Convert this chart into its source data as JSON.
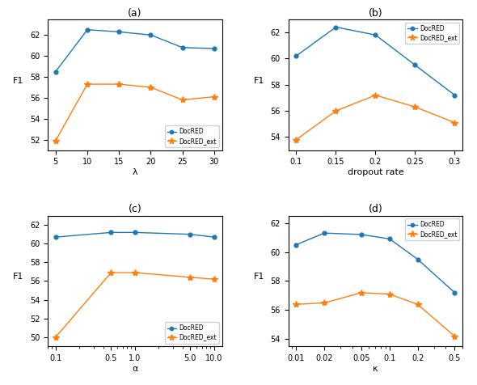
{
  "panel_a": {
    "title": "(a)",
    "xlabel": "λ",
    "ylabel": "F1",
    "x": [
      5,
      10,
      15,
      20,
      25,
      30
    ],
    "blue_y": [
      58.5,
      62.5,
      62.3,
      62.0,
      60.8,
      60.7
    ],
    "orange_y": [
      51.9,
      57.3,
      57.3,
      57.0,
      55.8,
      56.1
    ],
    "blue_label": "DocRED",
    "orange_label": "DocRED_ext",
    "ylim": [
      51.0,
      63.5
    ],
    "yticks": [
      52,
      54,
      56,
      58,
      60,
      62
    ],
    "xticks": [
      5,
      10,
      15,
      20,
      25,
      30
    ],
    "xtick_labels": [
      "5",
      "10",
      "15",
      "20",
      "25",
      "30"
    ],
    "legend_loc": "lower right"
  },
  "panel_b": {
    "title": "(b)",
    "xlabel": "dropout rate",
    "ylabel": "F1",
    "x": [
      0.1,
      0.15,
      0.2,
      0.25,
      0.3
    ],
    "blue_y": [
      60.2,
      62.4,
      61.8,
      59.5,
      57.2
    ],
    "orange_y": [
      53.8,
      56.0,
      57.2,
      56.3,
      55.1
    ],
    "blue_label": "DocRED",
    "orange_label": "DocRED_ext",
    "ylim": [
      53.0,
      63.0
    ],
    "yticks": [
      54,
      56,
      58,
      60,
      62
    ],
    "xticks": [
      0.1,
      0.15,
      0.2,
      0.25,
      0.3
    ],
    "xtick_labels": [
      "0.1",
      "0.15",
      "0.2",
      "0.25",
      "0.3"
    ],
    "legend_loc": "upper right"
  },
  "panel_c": {
    "title": "(c)",
    "xlabel": "α",
    "ylabel": "F1",
    "x": [
      0.1,
      0.5,
      1.0,
      5.0,
      10.0
    ],
    "blue_y": [
      60.7,
      61.2,
      61.2,
      61.0,
      60.7
    ],
    "orange_y": [
      50.0,
      56.9,
      56.9,
      56.4,
      56.2
    ],
    "blue_label": "DocRED",
    "orange_label": "DocRED_ext",
    "ylim": [
      49.0,
      63.0
    ],
    "yticks": [
      50,
      52,
      54,
      56,
      58,
      60,
      62
    ],
    "xticks": [
      0.1,
      0.5,
      1.0,
      5.0,
      10.0
    ],
    "xtick_labels": [
      "0.1",
      "0.5",
      "1.0",
      "5.0",
      "10.0"
    ],
    "legend_loc": "lower right"
  },
  "panel_d": {
    "title": "(d)",
    "xlabel": "κ",
    "ylabel": "F1",
    "x": [
      0.01,
      0.02,
      0.05,
      0.1,
      0.2,
      0.5
    ],
    "blue_y": [
      60.5,
      61.3,
      61.2,
      60.9,
      59.5,
      57.2
    ],
    "orange_y": [
      56.4,
      56.5,
      57.2,
      57.1,
      56.4,
      54.2
    ],
    "blue_label": "DocRED",
    "orange_label": "DocRED_ext",
    "ylim": [
      53.5,
      62.5
    ],
    "yticks": [
      54,
      56,
      58,
      60,
      62
    ],
    "xticks": [
      0.01,
      0.02,
      0.05,
      0.1,
      0.2,
      0.5
    ],
    "xtick_labels": [
      "0.01",
      "0.02",
      "0.05",
      "0.1",
      "0.2",
      "0.5"
    ],
    "legend_loc": "upper right"
  },
  "blue_color": "#1f77b4",
  "orange_color": "#ff7f0e",
  "fig_width": 5.9,
  "fig_height": 4.76,
  "dpi": 100
}
